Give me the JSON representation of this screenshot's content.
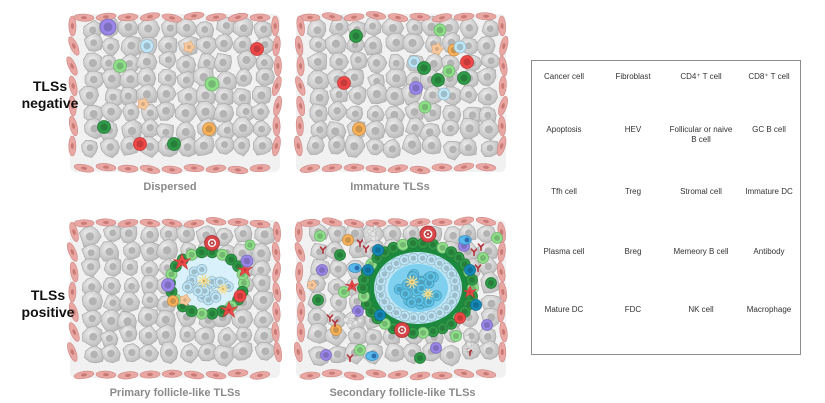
{
  "row_labels": {
    "negative": [
      "TLSs",
      "negative"
    ],
    "positive": [
      "TLSs",
      "positive"
    ]
  },
  "panels": {
    "dispersed": "Dispersed",
    "immature": "Immature TLSs",
    "primary": "Primary follicle-like TLSs",
    "secondary": "Secondary follicle-like TLSs"
  },
  "legend": [
    {
      "label": "Cancer cell",
      "icon": "cancer-cell-icon"
    },
    {
      "label": "Fibroblast",
      "icon": "fibroblast-icon"
    },
    {
      "label": "CD4⁺ T cell",
      "icon": "cd4-t-cell-icon"
    },
    {
      "label": "CD8⁺ T cell",
      "icon": "cd8-t-cell-icon"
    },
    {
      "label": "Apoptosis",
      "icon": "apoptosis-icon"
    },
    {
      "label": "HEV",
      "icon": "hev-icon"
    },
    {
      "label": "Follicular or naive B cell",
      "icon": "follicular-b-cell-icon"
    },
    {
      "label": "GC  B cell",
      "icon": "gc-b-cell-icon"
    },
    {
      "label": "Tfh cell",
      "icon": "tfh-cell-icon"
    },
    {
      "label": "Treg",
      "icon": "treg-icon"
    },
    {
      "label": "Stromal cell",
      "icon": "stromal-cell-icon"
    },
    {
      "label": "Immature DC",
      "icon": "immature-dc-icon"
    },
    {
      "label": "Plasma cell",
      "icon": "plasma-cell-icon"
    },
    {
      "label": "Breg",
      "icon": "breg-icon"
    },
    {
      "label": "Memeory B cell",
      "icon": "memory-b-cell-icon"
    },
    {
      "label": "Antibody",
      "icon": "antibody-icon"
    },
    {
      "label": "Mature DC",
      "icon": "mature-dc-icon"
    },
    {
      "label": "FDC",
      "icon": "fdc-icon"
    },
    {
      "label": "NK cell",
      "icon": "nk-cell-icon"
    },
    {
      "label": "Macrophage",
      "icon": "macrophage-icon"
    }
  ],
  "colors": {
    "fibroblast": "#e9a7a3",
    "cancer": "#cfcfcf",
    "cd4": "#8fe08a",
    "cd8": "#2f9a48",
    "follicular_b": "#bfe7f7",
    "gc_b": "#5ec4e9",
    "treg": "#f8b25a",
    "breg": "#f04848",
    "memory_b": "#1589b8",
    "nk": "#9a86e8",
    "hev": "#d9464a",
    "stromal": "#ee4a4a",
    "antibody": "#b5303a"
  }
}
